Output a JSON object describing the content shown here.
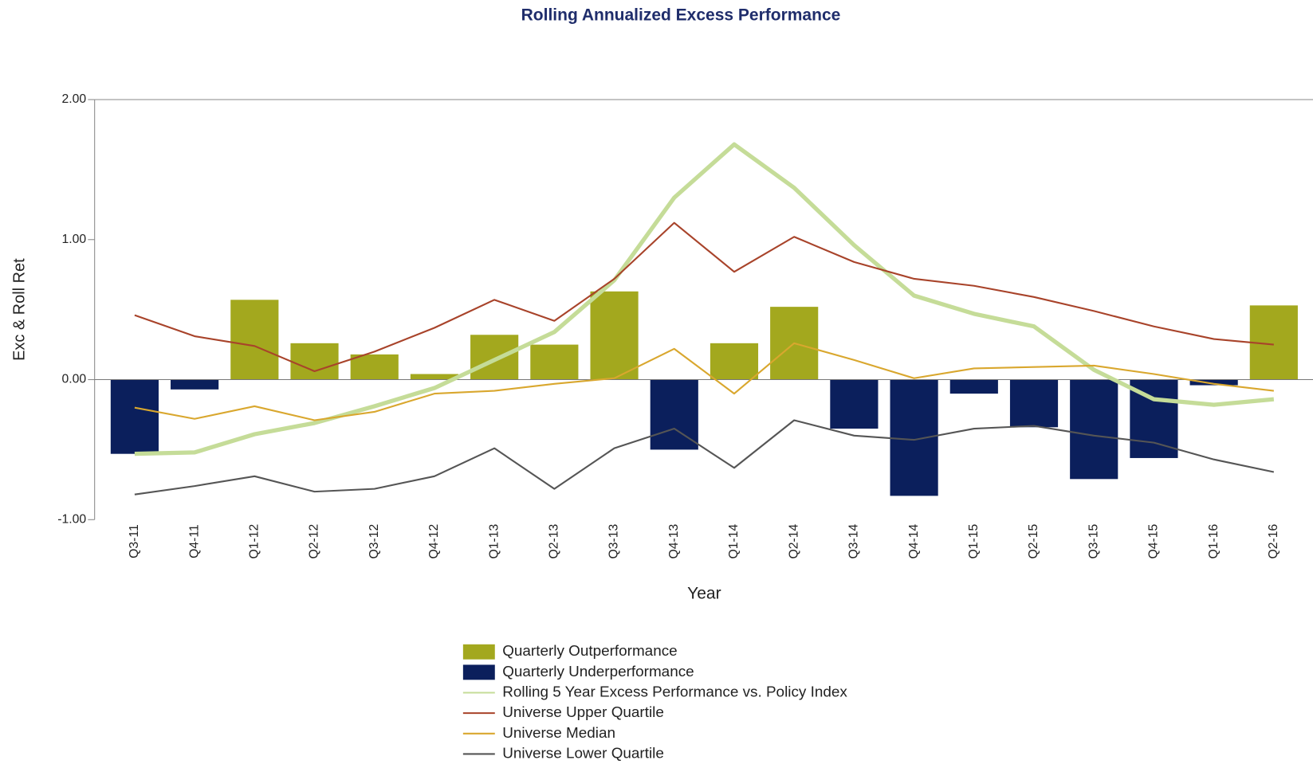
{
  "chart_data": {
    "type": "combo",
    "title": "Rolling Annualized Excess Performance",
    "x_label": "Year",
    "y_label": "Exc & Roll Ret",
    "categories": [
      "Q3-11",
      "Q4-11",
      "Q1-12",
      "Q2-12",
      "Q3-12",
      "Q4-12",
      "Q1-13",
      "Q2-13",
      "Q3-13",
      "Q4-13",
      "Q1-14",
      "Q2-14",
      "Q3-14",
      "Q4-14",
      "Q1-15",
      "Q2-15",
      "Q3-15",
      "Q4-15",
      "Q1-16",
      "Q2-16"
    ],
    "ylim": [
      -1,
      2
    ],
    "yticks": [
      {
        "value": 2,
        "label": "2.00"
      },
      {
        "value": 1,
        "label": "1.00"
      },
      {
        "value": 0,
        "label": "0.00"
      },
      {
        "value": -1,
        "label": "-1.00"
      }
    ],
    "series": [
      {
        "name": "Quarterly Outperformance",
        "type": "bar",
        "color": "#a3a81e",
        "values": [
          null,
          null,
          0.57,
          0.26,
          0.18,
          0.04,
          0.32,
          0.25,
          0.63,
          null,
          0.26,
          0.52,
          null,
          null,
          null,
          null,
          null,
          null,
          null,
          0.53
        ]
      },
      {
        "name": "Quarterly Underperformance",
        "type": "bar",
        "color": "#0b1f5c",
        "values": [
          -0.53,
          -0.07,
          null,
          null,
          null,
          null,
          null,
          null,
          null,
          -0.5,
          null,
          null,
          -0.35,
          -0.83,
          -0.1,
          -0.34,
          -0.71,
          -0.56,
          -0.04,
          null
        ]
      },
      {
        "name": "Rolling 5 Year Excess Performance vs. Policy Index",
        "type": "line",
        "color": "#c5dc98",
        "width": 5,
        "values": [
          -0.53,
          -0.52,
          -0.39,
          -0.31,
          -0.19,
          -0.06,
          0.14,
          0.34,
          0.71,
          1.3,
          1.68,
          1.37,
          0.96,
          0.6,
          0.47,
          0.38,
          0.07,
          -0.14,
          -0.18,
          -0.14
        ]
      },
      {
        "name": "Universe Upper Quartile",
        "type": "line",
        "color": "#a8432a",
        "width": 2,
        "values": [
          0.46,
          0.31,
          0.24,
          0.06,
          0.2,
          0.37,
          0.57,
          0.42,
          0.72,
          1.12,
          0.77,
          1.02,
          0.84,
          0.72,
          0.67,
          0.59,
          0.49,
          0.38,
          0.29,
          0.25
        ]
      },
      {
        "name": "Universe Median",
        "type": "line",
        "color": "#d9a72e",
        "width": 2,
        "values": [
          -0.2,
          -0.28,
          -0.19,
          -0.29,
          -0.23,
          -0.1,
          -0.08,
          -0.03,
          0.01,
          0.22,
          -0.1,
          0.26,
          0.14,
          0.01,
          0.08,
          0.09,
          0.1,
          0.04,
          -0.03,
          -0.08
        ]
      },
      {
        "name": "Universe Lower Quartile",
        "type": "line",
        "color": "#555555",
        "width": 2,
        "values": [
          -0.82,
          -0.76,
          -0.69,
          -0.8,
          -0.78,
          -0.69,
          -0.49,
          -0.78,
          -0.49,
          -0.35,
          -0.63,
          -0.29,
          -0.4,
          -0.43,
          -0.35,
          -0.33,
          -0.4,
          -0.45,
          -0.57,
          -0.66
        ]
      }
    ]
  }
}
